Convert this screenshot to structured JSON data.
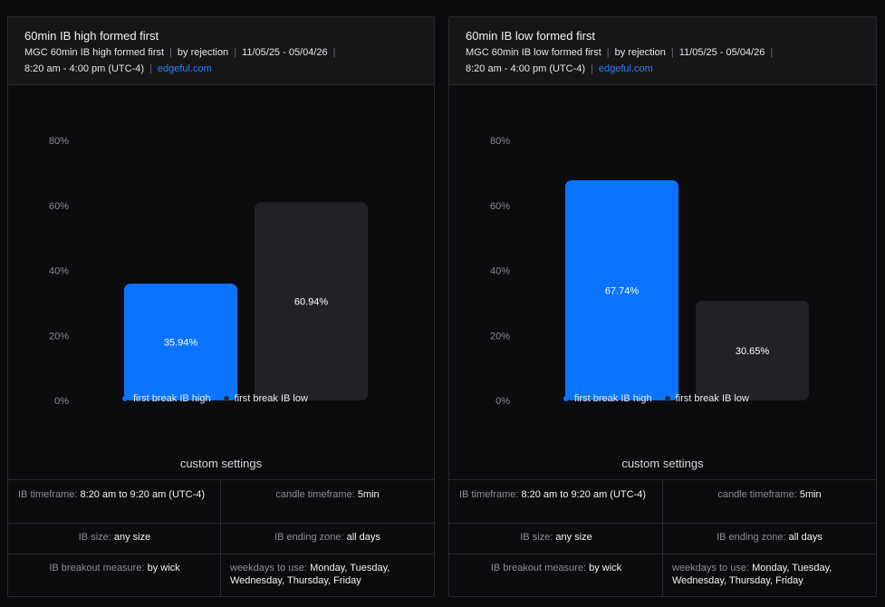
{
  "panels": [
    {
      "title": "60min IB high formed first",
      "meta": {
        "instrument": "MGC 60min IB high formed first",
        "method": "by rejection",
        "dates": "11/05/25 - 05/04/26",
        "session": "8:20 am - 4:00 pm (UTC-4)",
        "link": "edgeful.com"
      },
      "settings_title": "custom settings",
      "settings": {
        "ib_timeframe_label": "IB timeframe:",
        "ib_timeframe_value": "8:20 am to 9:20 am (UTC-4)",
        "candle_timeframe_label": "candle timeframe:",
        "candle_timeframe_value": "5min",
        "ib_size_label": "IB size:",
        "ib_size_value": "any size",
        "ib_ending_zone_label": "IB ending zone:",
        "ib_ending_zone_value": "all days",
        "breakout_label": "IB breakout measure:",
        "breakout_value": "by wick",
        "weekdays_label": "weekdays to use:",
        "weekdays_value": "Monday, Tuesday, Wednesday, Thursday, Friday"
      }
    },
    {
      "title": "60min IB low formed first",
      "meta": {
        "instrument": "MGC 60min IB low formed first",
        "method": "by rejection",
        "dates": "11/05/25 - 05/04/26",
        "session": "8:20 am - 4:00 pm (UTC-4)",
        "link": "edgeful.com"
      },
      "settings_title": "custom settings",
      "settings": {
        "ib_timeframe_label": "IB timeframe:",
        "ib_timeframe_value": "8:20 am to 9:20 am (UTC-4)",
        "candle_timeframe_label": "candle timeframe:",
        "candle_timeframe_value": "5min",
        "ib_size_label": "IB size:",
        "ib_size_value": "any size",
        "ib_ending_zone_label": "IB ending zone:",
        "ib_ending_zone_value": "all days",
        "breakout_label": "IB breakout measure:",
        "breakout_value": "by wick",
        "weekdays_label": "weekdays to use:",
        "weekdays_value": "Monday, Tuesday, Wednesday, Thursday, Friday"
      }
    }
  ],
  "chart_data": [
    {
      "type": "bar",
      "categories": [
        "first break IB high",
        "first break IB low"
      ],
      "values": [
        35.94,
        60.94
      ],
      "value_labels": [
        "35.94%",
        "60.94%"
      ],
      "colors": [
        "#0a74ff",
        "#222226"
      ],
      "yticks": [
        "0%",
        "20%",
        "40%",
        "60%",
        "80%"
      ],
      "ylim": [
        0,
        80
      ],
      "grid": false,
      "legend": "bottom"
    },
    {
      "type": "bar",
      "categories": [
        "first break IB high",
        "first break IB low"
      ],
      "values": [
        67.74,
        30.65
      ],
      "value_labels": [
        "67.74%",
        "30.65%"
      ],
      "colors": [
        "#0a74ff",
        "#222226"
      ],
      "yticks": [
        "0%",
        "20%",
        "40%",
        "60%",
        "80%"
      ],
      "ylim": [
        0,
        80
      ],
      "grid": false,
      "legend": "bottom"
    }
  ]
}
